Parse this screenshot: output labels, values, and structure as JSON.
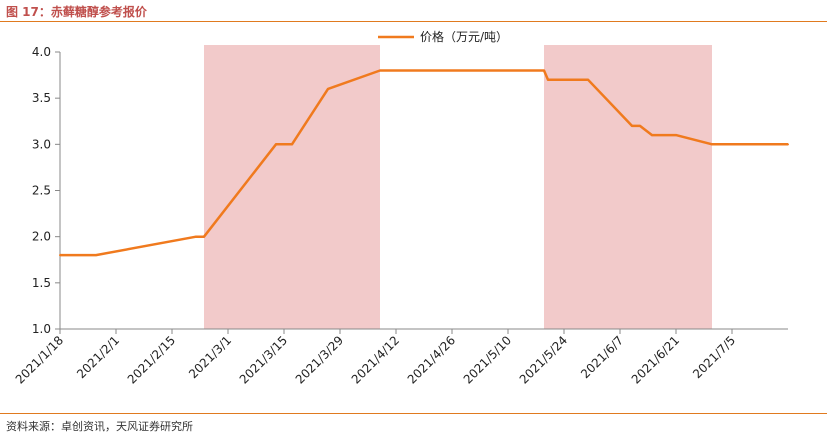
{
  "figure": {
    "title": "图 17：赤藓糖醇参考报价",
    "source": "资料来源：卓创资讯，天风证券研究所"
  },
  "colors": {
    "line": "#f07a1e",
    "shade": "#f2caca",
    "axis": "#888888",
    "accent": "#e07a1f"
  },
  "chart_data": {
    "type": "line",
    "legend_position": "top-center",
    "grid": false,
    "x_tick_labels": [
      "2021/1/18",
      "2021/2/1",
      "2021/2/15",
      "2021/3/1",
      "2021/3/15",
      "2021/3/29",
      "2021/4/12",
      "2021/4/26",
      "2021/5/10",
      "2021/5/24",
      "2021/6/7",
      "2021/6/21",
      "2021/7/5"
    ],
    "xlim": [
      "2021-01-18",
      "2021-07-19"
    ],
    "y_ticks": [
      "1.0",
      "1.5",
      "2.0",
      "2.5",
      "3.0",
      "3.5",
      "4.0"
    ],
    "ylim": [
      1.0,
      4.0
    ],
    "shaded_periods": [
      {
        "start": "2021-02-23",
        "end": "2021-04-08"
      },
      {
        "start": "2021-05-19",
        "end": "2021-06-30"
      }
    ],
    "series": [
      {
        "name": "价格（万元/吨）",
        "x": [
          "2021-01-18",
          "2021-01-27",
          "2021-02-21",
          "2021-02-23",
          "2021-03-13",
          "2021-03-17",
          "2021-03-26",
          "2021-04-08",
          "2021-05-19",
          "2021-05-20",
          "2021-05-30",
          "2021-06-10",
          "2021-06-12",
          "2021-06-15",
          "2021-06-21",
          "2021-06-30",
          "2021-07-19"
        ],
        "values": [
          1.8,
          1.8,
          2.0,
          2.0,
          3.0,
          3.0,
          3.6,
          3.8,
          3.8,
          3.7,
          3.7,
          3.2,
          3.2,
          3.1,
          3.1,
          3.0,
          3.0
        ]
      }
    ]
  }
}
